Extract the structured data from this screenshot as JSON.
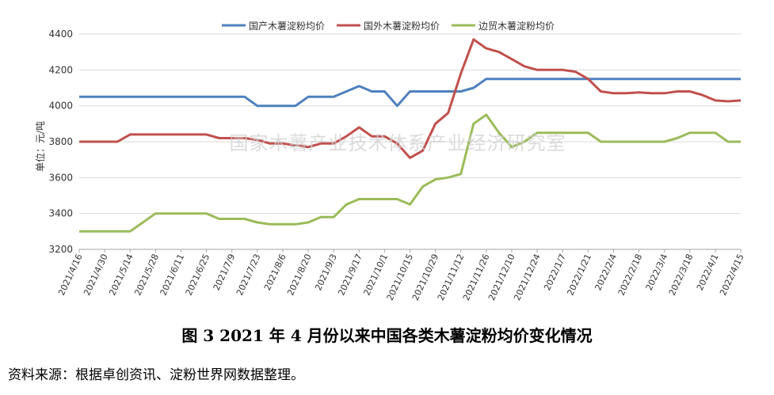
{
  "figure": {
    "caption": "图 3   2021 年 4 月份以来中国各类木薯淀粉均价变化情况",
    "source": "资料来源：根据卓创资讯、淀粉世界网数据整理。",
    "watermark": "国家木薯产业技术体系产业经济研究室"
  },
  "chart_data": {
    "type": "line",
    "ylabel": "单位：元/吨",
    "ylim": [
      3200,
      4400
    ],
    "yticks": [
      3200,
      3400,
      3600,
      3800,
      4000,
      4200,
      4400
    ],
    "grid": true,
    "legend_position": "top-center",
    "x_tick_labels": [
      "2021/4/16",
      "2021/4/30",
      "2021/5/14",
      "2021/5/28",
      "2021/6/11",
      "2021/6/25",
      "2021/7/9",
      "2021/7/23",
      "2021/8/6",
      "2021/8/20",
      "2021/9/3",
      "2021/9/17",
      "2021/10/1",
      "2021/10/15",
      "2021/10/29",
      "2021/11/12",
      "2021/11/26",
      "2021/12/10",
      "2021/12/24",
      "2022/1/7",
      "2022/1/21",
      "2022/2/4",
      "2022/2/18",
      "2022/3/4",
      "2022/3/18",
      "2022/4/1",
      "2022/4/15"
    ],
    "series": [
      {
        "name": "国产木薯淀粉均价",
        "color": "#4f81bd",
        "values": [
          4050,
          4050,
          4050,
          4050,
          4050,
          4050,
          4050,
          4050,
          4050,
          4050,
          4050,
          4050,
          4050,
          4050,
          4000,
          4000,
          4000,
          4000,
          4050,
          4050,
          4050,
          4080,
          4110,
          4080,
          4080,
          4000,
          4080,
          4080,
          4080,
          4080,
          4080,
          4100,
          4150,
          4150,
          4150,
          4150,
          4150,
          4150,
          4150,
          4150,
          4150,
          4150,
          4150,
          4150,
          4150,
          4150,
          4150,
          4150,
          4150,
          4150,
          4150,
          4150,
          4150
        ]
      },
      {
        "name": "国外木薯淀粉均价",
        "color": "#c0504d",
        "values": [
          3800,
          3800,
          3800,
          3800,
          3840,
          3840,
          3840,
          3840,
          3840,
          3840,
          3840,
          3820,
          3820,
          3820,
          3810,
          3790,
          3790,
          3780,
          3770,
          3790,
          3790,
          3830,
          3880,
          3830,
          3830,
          3790,
          3710,
          3750,
          3900,
          3960,
          4180,
          4370,
          4320,
          4300,
          4260,
          4220,
          4200,
          4200,
          4200,
          4190,
          4150,
          4080,
          4070,
          4070,
          4075,
          4070,
          4070,
          4080,
          4080,
          4060,
          4030,
          4025,
          4030
        ]
      },
      {
        "name": "边贸木薯淀粉均价",
        "color": "#9bbb59",
        "values": [
          3300,
          3300,
          3300,
          3300,
          3300,
          3350,
          3400,
          3400,
          3400,
          3400,
          3400,
          3370,
          3370,
          3370,
          3350,
          3340,
          3340,
          3340,
          3350,
          3380,
          3380,
          3450,
          3480,
          3480,
          3480,
          3480,
          3450,
          3550,
          3590,
          3600,
          3620,
          3900,
          3950,
          3850,
          3770,
          3800,
          3850,
          3850,
          3850,
          3850,
          3850,
          3800,
          3800,
          3800,
          3800,
          3800,
          3800,
          3820,
          3850,
          3850,
          3850,
          3800,
          3800
        ]
      }
    ]
  }
}
